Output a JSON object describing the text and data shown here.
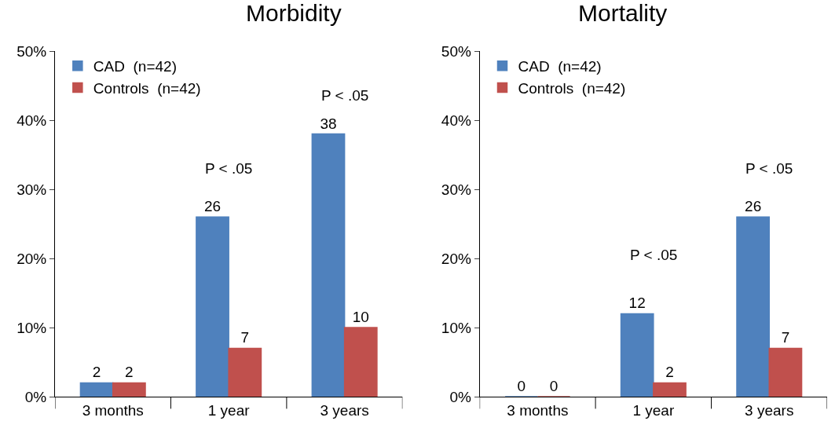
{
  "chart_data": [
    {
      "type": "bar",
      "title": "Morbidity",
      "categories": [
        "3 months",
        "1 year",
        "3 years"
      ],
      "series": [
        {
          "name": "CAD  (n=42)",
          "color": "#4f81bd",
          "values": [
            2,
            26,
            38
          ]
        },
        {
          "name": "Controls  (n=42)",
          "color": "#c0504d",
          "values": [
            2,
            7,
            10
          ]
        }
      ],
      "ylim": [
        0,
        50
      ],
      "yticks": [
        {
          "value": 0,
          "label": "0%"
        },
        {
          "value": 10,
          "label": "10%"
        },
        {
          "value": 20,
          "label": "20%"
        },
        {
          "value": 30,
          "label": "30%"
        },
        {
          "value": 40,
          "label": "40%"
        },
        {
          "value": 50,
          "label": "50%"
        }
      ],
      "data_labels": true,
      "legend": "top left",
      "annotations": [
        "P < .05",
        "P < .05"
      ]
    },
    {
      "type": "bar",
      "title": "Mortality",
      "categories": [
        "3 months",
        "1 year",
        "3 years"
      ],
      "series": [
        {
          "name": "CAD  (n=42)",
          "color": "#4f81bd",
          "values": [
            0,
            12,
            26
          ]
        },
        {
          "name": "Controls  (n=42)",
          "color": "#c0504d",
          "values": [
            0,
            2,
            7
          ]
        }
      ],
      "ylim": [
        0,
        50
      ],
      "yticks": [
        {
          "value": 0,
          "label": "0%"
        },
        {
          "value": 10,
          "label": "10%"
        },
        {
          "value": 20,
          "label": "20%"
        },
        {
          "value": 30,
          "label": "30%"
        },
        {
          "value": 40,
          "label": "40%"
        },
        {
          "value": 50,
          "label": "50%"
        }
      ],
      "data_labels": true,
      "legend": "top left",
      "annotations": [
        "P < .05",
        "P < .05"
      ]
    }
  ]
}
